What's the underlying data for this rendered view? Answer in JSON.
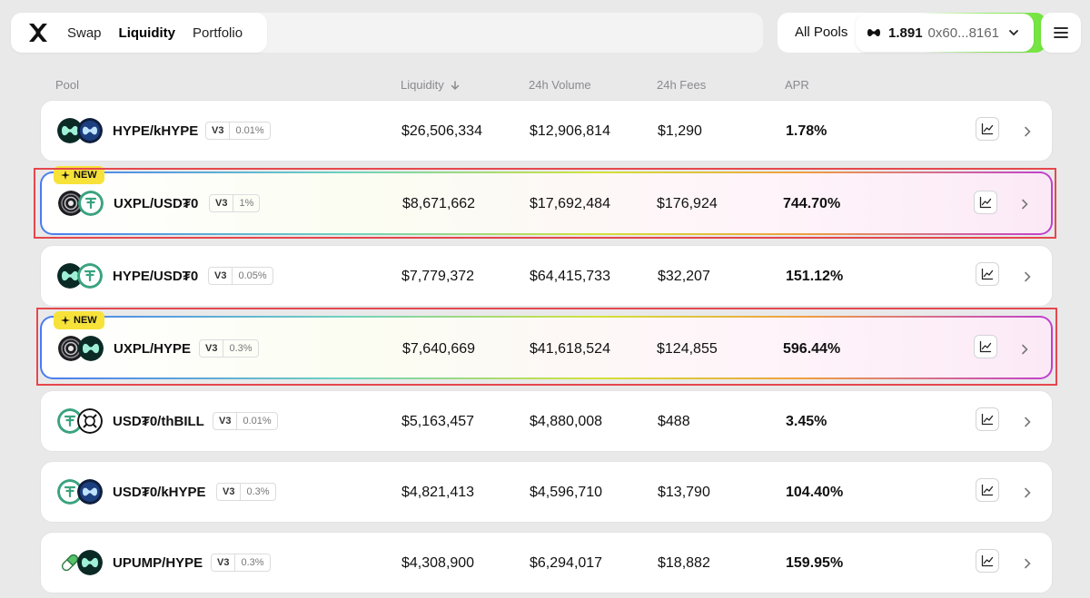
{
  "nav": {
    "logo_icon": "hyperswap-x-logo-icon",
    "links": [
      "Swap",
      "Liquidity",
      "Portfolio"
    ]
  },
  "header_right": {
    "all_pools": "All Pools",
    "balance": "1.891",
    "address": "0x60...8161"
  },
  "table": {
    "columns": {
      "pool": "Pool",
      "liquidity": "Liquidity",
      "volume": "24h Volume",
      "fees": "24h Fees",
      "apr": "APR"
    },
    "new_label": "NEW",
    "rows": [
      {
        "pair": "HYPE/kHYPE",
        "version": "V3",
        "fee": "0.01%",
        "liquidity": "$26,506,334",
        "volume": "$12,906,814",
        "fees": "$1,290",
        "apr": "1.78%"
      },
      {
        "pair": "UXPL/USD₮0",
        "version": "V3",
        "fee": "1%",
        "liquidity": "$8,671,662",
        "volume": "$17,692,484",
        "fees": "$176,924",
        "apr": "744.70%"
      },
      {
        "pair": "HYPE/USD₮0",
        "version": "V3",
        "fee": "0.05%",
        "liquidity": "$7,779,372",
        "volume": "$64,415,733",
        "fees": "$32,207",
        "apr": "151.12%"
      },
      {
        "pair": "UXPL/HYPE",
        "version": "V3",
        "fee": "0.3%",
        "liquidity": "$7,640,669",
        "volume": "$41,618,524",
        "fees": "$124,855",
        "apr": "596.44%"
      },
      {
        "pair": "USD₮0/thBILL",
        "version": "V3",
        "fee": "0.01%",
        "liquidity": "$5,163,457",
        "volume": "$4,880,008",
        "fees": "$488",
        "apr": "3.45%"
      },
      {
        "pair": "USD₮0/kHYPE",
        "version": "V3",
        "fee": "0.3%",
        "liquidity": "$4,821,413",
        "volume": "$4,596,710",
        "fees": "$13,790",
        "apr": "104.40%"
      },
      {
        "pair": "UPUMP/HYPE",
        "version": "V3",
        "fee": "0.3%",
        "liquidity": "$4,308,900",
        "volume": "$6,294,017",
        "fees": "$18,882",
        "apr": "159.95%"
      }
    ]
  },
  "colors": {
    "highlight": "#e5484d",
    "new_badge": "#f7e23a",
    "wallet_glow": "#9bf06a"
  }
}
